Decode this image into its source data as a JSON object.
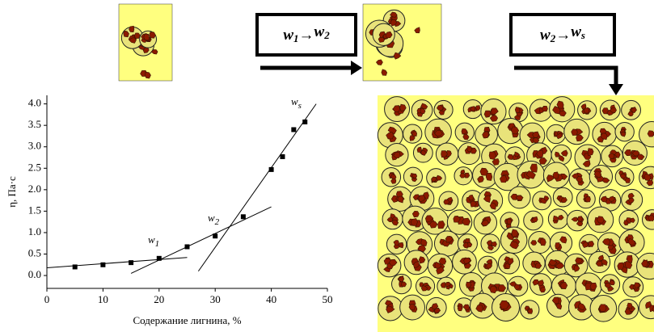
{
  "chart_data": {
    "type": "scatter",
    "x": [
      5,
      10,
      15,
      20,
      25,
      30,
      35,
      40,
      42,
      44,
      46
    ],
    "values": [
      0.2,
      0.25,
      0.3,
      0.4,
      0.67,
      0.92,
      1.37,
      2.47,
      2.77,
      3.4,
      3.58
    ],
    "color": "#000000",
    "fit_lines": [
      {
        "x": [
          0,
          25
        ],
        "values": [
          0.18,
          0.42
        ]
      },
      {
        "x": [
          15,
          40
        ],
        "values": [
          0.05,
          1.6
        ]
      },
      {
        "x": [
          27,
          48
        ],
        "values": [
          0.1,
          4.0
        ]
      }
    ],
    "xlabel": "Содержание лигнина, %",
    "ylabel": "η, Па·с",
    "xlim": [
      0,
      50
    ],
    "xticks": [
      0,
      10,
      20,
      30,
      40,
      50
    ],
    "ylim": [
      -0.3,
      4.2
    ],
    "yticks": [
      {
        "value": 0,
        "label": "0.0"
      },
      0.5,
      {
        "value": 1,
        "label": "1.0"
      },
      1.5,
      {
        "value": 2,
        "label": "2.0"
      },
      2.5,
      {
        "value": 3,
        "label": "3.0"
      },
      3.5,
      {
        "value": 4,
        "label": "4.0"
      }
    ],
    "annotations": [
      {
        "text": "w",
        "sub": "1"
      },
      {
        "text": "w",
        "sub": "2"
      },
      {
        "text": "w",
        "sub": "s"
      }
    ],
    "transitions": [
      {
        "a": "w",
        "a_sub": "1",
        "arrow": "→",
        "b": "w",
        "b_sub": "2"
      },
      {
        "a": "w",
        "a_sub": "2",
        "arrow": "→",
        "b": "w",
        "b_sub": "s"
      }
    ]
  }
}
